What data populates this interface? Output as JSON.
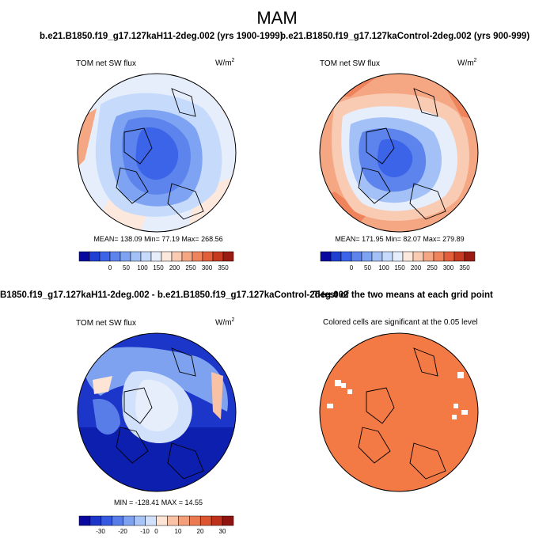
{
  "figure": {
    "title": "MAM"
  },
  "panels": {
    "p1": {
      "title": "b.e21.B1850.f19_g17.127kaH11-2deg.002 (yrs 1900-1999)",
      "variable": "TOM net SW flux",
      "units_base": "W/m",
      "units_exp": "2",
      "stats": "MEAN= 138.09  Min=  77.19  Max= 268.56",
      "colorbar_ticks": [
        "0",
        "50",
        "100",
        "150",
        "200",
        "250",
        "300",
        "350"
      ]
    },
    "p2": {
      "title": "b.e21.B1850.f19_g17.127kaControl-2deg.002 (yrs 900-999)",
      "variable": "TOM net SW flux",
      "units_base": "W/m",
      "units_exp": "2",
      "stats": "MEAN= 171.95  Min=  82.07  Max= 279.89",
      "colorbar_ticks": [
        "0",
        "50",
        "100",
        "150",
        "200",
        "250",
        "300",
        "350"
      ]
    },
    "p3": {
      "title": "B1850.f19_g17.127kaH11-2deg.002 - b.e21.B1850.f19_g17.127kaControl-2deg.002",
      "variable": "TOM net SW flux",
      "units_base": "W/m",
      "units_exp": "2",
      "stats": "MIN = -128.41 MAX =  14.55",
      "colorbar_ticks": [
        "-30",
        "-20",
        "-10",
        "0",
        "10",
        "20",
        "30"
      ]
    },
    "p4": {
      "title": "T-test of the two means at each grid point",
      "subtitle": "Colored cells are significant at the 0.05 level"
    }
  },
  "colors": {
    "map_fill_significant": "#f47a45",
    "abs_colorbar": [
      "#08089e",
      "#1e3fd1",
      "#3c64e8",
      "#5d84ec",
      "#7ea3f2",
      "#a3c1f7",
      "#c6dbfb",
      "#e6eefc",
      "#fce8dd",
      "#f9cbb2",
      "#f5a784",
      "#ef845c",
      "#e35f3b",
      "#c63a22",
      "#9a1b12"
    ],
    "diff_colorbar": [
      "#08089e",
      "#1c36c9",
      "#3559e0",
      "#587de9",
      "#7ea2f0",
      "#a8c4f7",
      "#d2e1fb",
      "#fde4d4",
      "#f9c2a4",
      "#f3a07a",
      "#ec7a51",
      "#dd5530",
      "#c0311c",
      "#8f1410"
    ]
  }
}
